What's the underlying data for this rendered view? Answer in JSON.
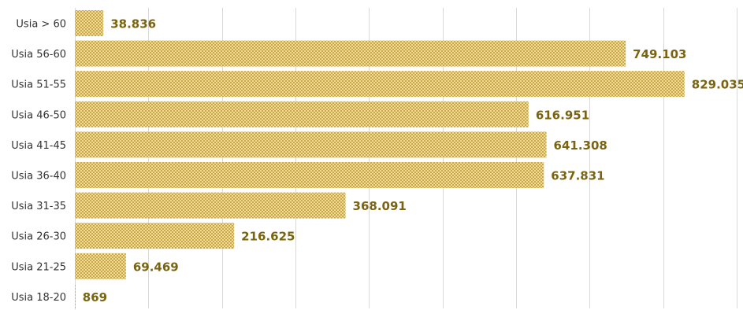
{
  "chart_data": {
    "type": "bar",
    "orientation": "horizontal",
    "categories": [
      "Usia > 60",
      "Usia 56-60",
      "Usia 51-55",
      "Usia 46-50",
      "Usia 41-45",
      "Usia 36-40",
      "Usia 31-35",
      "Usia 26-30",
      "Usia 21-25",
      "Usia 18-20"
    ],
    "values": [
      38836,
      749103,
      829035,
      616951,
      641308,
      637831,
      368091,
      216625,
      69469,
      869
    ],
    "value_labels": [
      "38.836",
      "749.103",
      "829.035",
      "616.951",
      "641.308",
      "637.831",
      "368.091",
      "216.625",
      "69.469",
      "869"
    ],
    "title": "",
    "xlabel": "",
    "ylabel": "",
    "xlim": [
      0,
      900000
    ],
    "grid": true,
    "legend": "none",
    "colors": {
      "bar": "#e8cf7a",
      "pattern": "#b8962e",
      "value_label": "#7a6410",
      "grid": "#d9d9d9"
    }
  }
}
